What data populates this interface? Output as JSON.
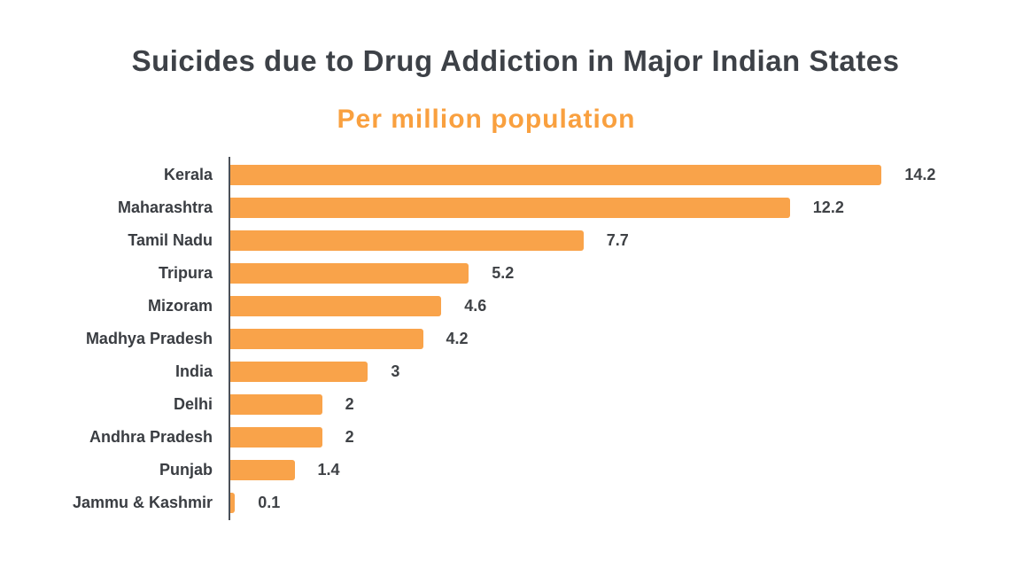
{
  "title": "Suicides due to Drug Addiction in Major Indian States",
  "subtitle": "Per million population",
  "colors": {
    "bar": "#F9A34A",
    "title": "#3D4147",
    "subtitle": "#F9A03F",
    "axis": "#4A5058",
    "label": "#3A3D42",
    "value": "#3F4246",
    "background": "#FFFFFF"
  },
  "chart_data": {
    "type": "bar",
    "orientation": "horizontal",
    "title": "Suicides due to Drug Addiction in Major Indian States",
    "subtitle": "Per million population",
    "categories": [
      "Kerala",
      "Maharashtra",
      "Tamil Nadu",
      "Tripura",
      "Mizoram",
      "Madhya Pradesh",
      "India",
      "Delhi",
      "Andhra Pradesh",
      "Punjab",
      "Jammu & Kashmir"
    ],
    "values": [
      14.2,
      12.2,
      7.7,
      5.2,
      4.6,
      4.2,
      3,
      2,
      2,
      1.4,
      0.1
    ],
    "value_labels": [
      "14.2",
      "12.2",
      "7.7",
      "5.2",
      "4.6",
      "4.2",
      "3",
      "2",
      "2",
      "1.4",
      "0.1"
    ],
    "xlabel": "",
    "ylabel": "",
    "xlim": [
      0,
      15.1
    ],
    "grid": false,
    "legend": false,
    "data_labels": true
  }
}
